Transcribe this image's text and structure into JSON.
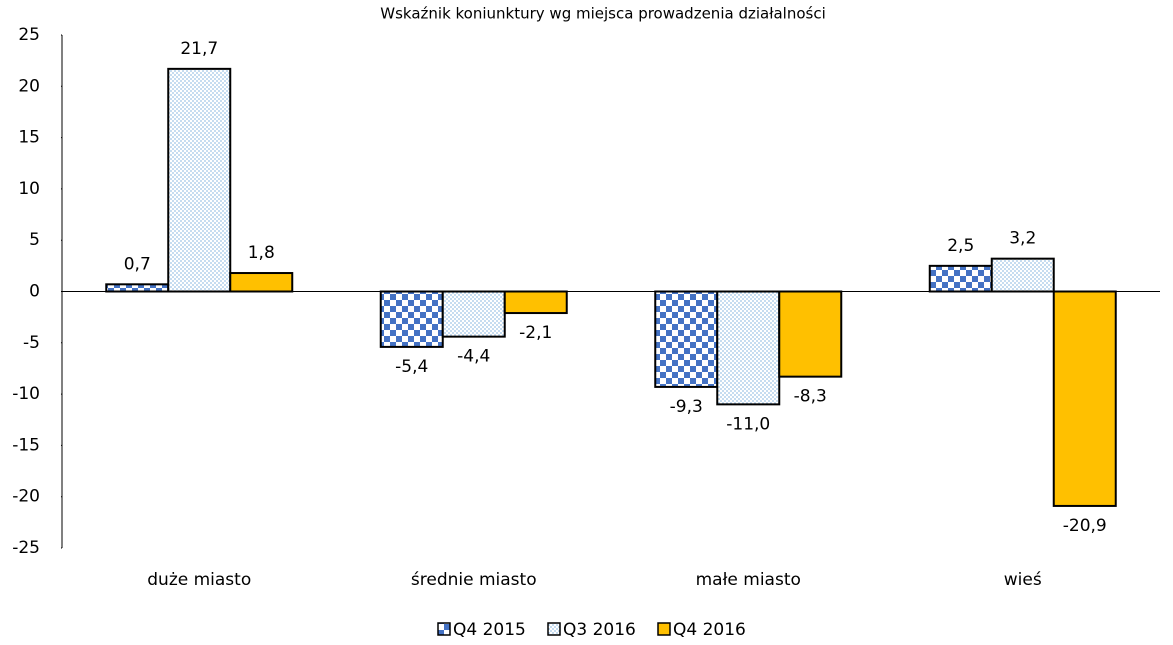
{
  "chart_data": {
    "type": "bar",
    "title": "Wskaźnik koniunktury wg miejsca prowadzenia działalności",
    "categories": [
      "duże miasto",
      "średnie miasto",
      "małe miasto",
      "wieś"
    ],
    "series": [
      {
        "name": "Q4 2015",
        "color": "#4472c4",
        "pattern": "checker",
        "values": [
          0.7,
          -5.4,
          -9.3,
          2.5
        ],
        "value_labels": [
          "0,7",
          "-5,4",
          "-9,3",
          "2,5"
        ]
      },
      {
        "name": "Q3 2016",
        "color": "#9dc3e6",
        "pattern": "dots",
        "values": [
          21.7,
          -4.4,
          -11.0,
          3.2
        ],
        "value_labels": [
          "21,7",
          "-4,4",
          "-11,0",
          "3,2"
        ]
      },
      {
        "name": "Q4 2016",
        "color": "#ffc000",
        "pattern": "solid",
        "values": [
          1.8,
          -2.1,
          -8.3,
          -20.9
        ],
        "value_labels": [
          "1,8",
          "-2,1",
          "-8,3",
          "-20,9"
        ]
      }
    ],
    "ylim": [
      -25,
      25
    ],
    "yticks": [
      -25,
      -20,
      -15,
      -10,
      -5,
      0,
      5,
      10,
      15,
      20,
      25
    ],
    "grid": false,
    "legend": "bottom"
  }
}
